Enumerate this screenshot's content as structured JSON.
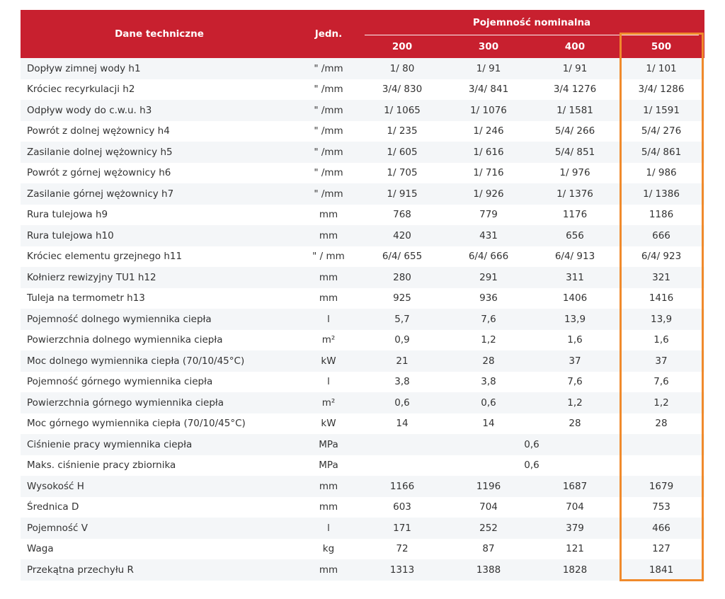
{
  "header": {
    "label": "Dane techniczne",
    "unit": "Jedn.",
    "group": "Pojemność nominalna",
    "capacities": [
      "200",
      "300",
      "400",
      "500"
    ]
  },
  "highlight": {
    "column": "500",
    "color": "#f08a2c"
  },
  "colors": {
    "header_bg": "#c8202f",
    "stripe": "#f4f6f8",
    "outline": "#f08a2c"
  },
  "rows": [
    {
      "label": "Dopływ zimnej wody h1",
      "unit": "\" /mm",
      "values": [
        "1/ 80",
        "1/ 91",
        "1/ 91",
        "1/ 101"
      ]
    },
    {
      "label": "Króciec recyrkulacji h2",
      "unit": "\" /mm",
      "values": [
        "3/4/ 830",
        "3/4/ 841",
        "3/4 1276",
        "3/4/ 1286"
      ]
    },
    {
      "label": "Odpływ wody do c.w.u. h3",
      "unit": "\" /mm",
      "values": [
        "1/ 1065",
        "1/ 1076",
        "1/ 1581",
        "1/ 1591"
      ]
    },
    {
      "label": "Powrót z dolnej wężownicy h4",
      "unit": "\" /mm",
      "values": [
        "1/ 235",
        "1/ 246",
        "5/4/ 266",
        "5/4/ 276"
      ]
    },
    {
      "label": "Zasilanie dolnej wężownicy h5",
      "unit": "\" /mm",
      "values": [
        "1/ 605",
        "1/ 616",
        "5/4/ 851",
        "5/4/ 861"
      ]
    },
    {
      "label": "Powrót z górnej wężownicy h6",
      "unit": "\" /mm",
      "values": [
        "1/ 705",
        "1/ 716",
        "1/ 976",
        "1/ 986"
      ]
    },
    {
      "label": "Zasilanie górnej wężownicy h7",
      "unit": "\" /mm",
      "values": [
        "1/ 915",
        "1/ 926",
        "1/ 1376",
        "1/ 1386"
      ]
    },
    {
      "label": "Rura tulejowa h9",
      "unit": "mm",
      "values": [
        "768",
        "779",
        "1176",
        "1186"
      ]
    },
    {
      "label": "Rura tulejowa h10",
      "unit": "mm",
      "values": [
        "420",
        "431",
        "656",
        "666"
      ]
    },
    {
      "label": "Króciec elementu grzejnego h11",
      "unit": "\" / mm",
      "values": [
        "6/4/ 655",
        "6/4/ 666",
        "6/4/ 913",
        "6/4/ 923"
      ]
    },
    {
      "label": "Kołnierz rewizyjny TU1 h12",
      "unit": "mm",
      "values": [
        "280",
        "291",
        "311",
        "321"
      ]
    },
    {
      "label": "Tuleja na termometr h13",
      "unit": "mm",
      "values": [
        "925",
        "936",
        "1406",
        "1416"
      ]
    },
    {
      "label": "Pojemność dolnego wymiennika ciepła",
      "unit": "l",
      "values": [
        "5,7",
        "7,6",
        "13,9",
        "13,9"
      ]
    },
    {
      "label": "Powierzchnia dolnego wymiennika ciepła",
      "unit": "m²",
      "values": [
        "0,9",
        "1,2",
        "1,6",
        "1,6"
      ]
    },
    {
      "label": "Moc dolnego wymiennika ciepła (70/10/45°C)",
      "unit": "kW",
      "values": [
        "21",
        "28",
        "37",
        "37"
      ]
    },
    {
      "label": "Pojemność górnego wymiennika ciepła",
      "unit": "l",
      "values": [
        "3,8",
        "3,8",
        "7,6",
        "7,6"
      ]
    },
    {
      "label": "Powierzchnia górnego wymiennika ciepła",
      "unit": "m²",
      "values": [
        "0,6",
        "0,6",
        "1,2",
        "1,2"
      ]
    },
    {
      "label": "Moc górnego wymiennika ciepła (70/10/45°C)",
      "unit": "kW",
      "values": [
        "14",
        "14",
        "28",
        "28"
      ]
    },
    {
      "label": "Ciśnienie pracy wymiennika ciepła",
      "unit": "MPa",
      "merged": "0,6"
    },
    {
      "label": "Maks. ciśnienie pracy zbiornika",
      "unit": "MPa",
      "merged": "0,6"
    },
    {
      "label": "Wysokość H",
      "unit": "mm",
      "values": [
        "1166",
        "1196",
        "1687",
        "1679"
      ]
    },
    {
      "label": "Średnica D",
      "unit": "mm",
      "values": [
        "603",
        "704",
        "704",
        "753"
      ]
    },
    {
      "label": "Pojemność V",
      "unit": "l",
      "values": [
        "171",
        "252",
        "379",
        "466"
      ]
    },
    {
      "label": "Waga",
      "unit": "kg",
      "values": [
        "72",
        "87",
        "121",
        "127"
      ]
    },
    {
      "label": "Przekątna przechyłu R",
      "unit": "mm",
      "values": [
        "1313",
        "1388",
        "1828",
        "1841"
      ]
    }
  ]
}
